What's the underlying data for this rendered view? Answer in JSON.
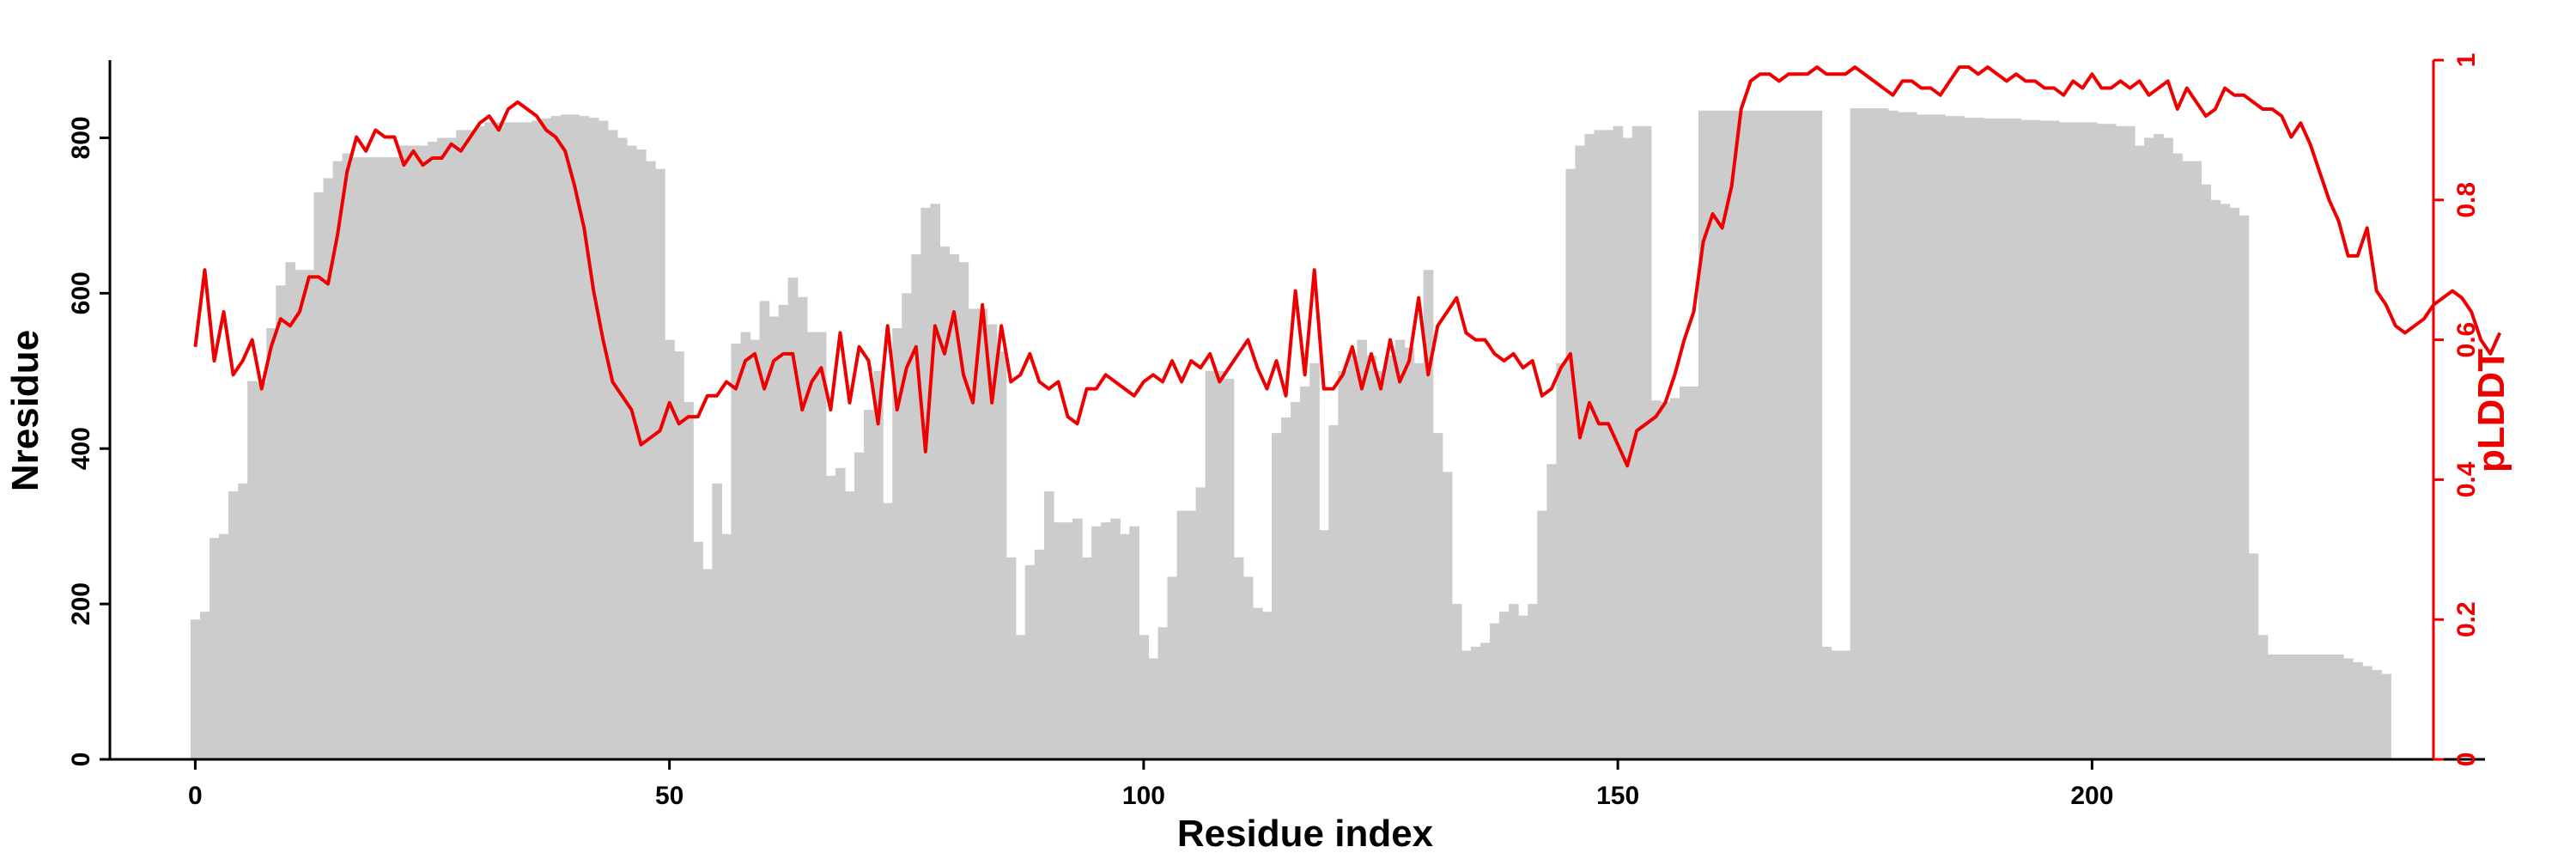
{
  "chart_data": {
    "type": "bar+line",
    "xlabel": "Residue index",
    "ylabel_left": "Nresidue",
    "ylabel_right": "pLDDT",
    "xlim": [
      -9,
      236
    ],
    "ylim_left": [
      0,
      900
    ],
    "ylim_right": [
      0,
      1
    ],
    "x_ticks": [
      "0",
      "50",
      "100",
      "150",
      "200"
    ],
    "y_left_ticks": [
      "0",
      "200",
      "400",
      "600",
      "800"
    ],
    "y_right_ticks": [
      "0",
      "0.2",
      "0.4",
      "0.6",
      "0.8",
      "1"
    ],
    "grid": false,
    "colors": {
      "bars": "#cccccc",
      "line": "#ee0000",
      "axis": "#000000"
    },
    "bars": {
      "name": "Nresidue",
      "x_start": 0,
      "values": [
        180,
        190,
        285,
        290,
        345,
        355,
        487,
        485,
        555,
        610,
        640,
        630,
        630,
        730,
        748,
        770,
        780,
        775,
        775,
        775,
        775,
        775,
        790,
        790,
        790,
        795,
        800,
        800,
        810,
        810,
        815,
        820,
        820,
        820,
        820,
        820,
        822,
        825,
        828,
        830,
        830,
        828,
        826,
        822,
        810,
        800,
        790,
        785,
        770,
        760,
        540,
        525,
        460,
        280,
        245,
        355,
        290,
        535,
        550,
        540,
        590,
        570,
        585,
        620,
        595,
        550,
        550,
        365,
        375,
        345,
        395,
        450,
        500,
        330,
        555,
        600,
        650,
        710,
        715,
        660,
        650,
        640,
        580,
        580,
        560,
        525,
        260,
        160,
        250,
        270,
        345,
        305,
        305,
        310,
        260,
        300,
        305,
        310,
        290,
        300,
        160,
        130,
        170,
        235,
        320,
        320,
        350,
        500,
        500,
        490,
        260,
        235,
        195,
        190,
        420,
        440,
        460,
        480,
        510,
        295,
        430,
        500,
        520,
        540,
        520,
        500,
        520,
        540,
        530,
        510,
        630,
        420,
        370,
        200,
        140,
        145,
        150,
        175,
        190,
        200,
        185,
        200,
        320,
        380,
        510,
        760,
        790,
        805,
        810,
        810,
        815,
        800,
        815,
        815,
        462,
        460,
        465,
        480,
        480,
        835,
        835,
        835,
        835,
        835,
        835,
        835,
        835,
        835,
        835,
        835,
        835,
        835,
        145,
        140,
        140,
        838,
        838,
        838,
        838,
        835,
        833,
        833,
        830,
        830,
        830,
        828,
        828,
        826,
        826,
        825,
        825,
        825,
        825,
        823,
        823,
        822,
        822,
        820,
        820,
        820,
        820,
        818,
        818,
        815,
        815,
        790,
        800,
        805,
        800,
        780,
        770,
        770,
        740,
        720,
        715,
        710,
        700,
        265,
        160,
        135,
        135,
        135,
        135,
        135,
        135,
        135,
        135,
        130,
        125,
        120,
        115,
        110
      ]
    },
    "line": {
      "name": "pLDDT",
      "x_start": 0,
      "values": [
        0.59,
        0.7,
        0.57,
        0.64,
        0.55,
        0.57,
        0.6,
        0.53,
        0.59,
        0.63,
        0.62,
        0.64,
        0.69,
        0.69,
        0.68,
        0.75,
        0.84,
        0.89,
        0.87,
        0.9,
        0.89,
        0.89,
        0.85,
        0.87,
        0.85,
        0.86,
        0.86,
        0.88,
        0.87,
        0.89,
        0.91,
        0.92,
        0.9,
        0.93,
        0.94,
        0.93,
        0.92,
        0.9,
        0.89,
        0.87,
        0.82,
        0.76,
        0.67,
        0.6,
        0.54,
        0.52,
        0.5,
        0.45,
        0.46,
        0.47,
        0.51,
        0.48,
        0.49,
        0.49,
        0.52,
        0.52,
        0.54,
        0.53,
        0.57,
        0.58,
        0.53,
        0.57,
        0.58,
        0.58,
        0.5,
        0.54,
        0.56,
        0.5,
        0.61,
        0.51,
        0.59,
        0.57,
        0.48,
        0.62,
        0.5,
        0.56,
        0.59,
        0.44,
        0.62,
        0.58,
        0.64,
        0.55,
        0.51,
        0.65,
        0.51,
        0.62,
        0.54,
        0.55,
        0.58,
        0.54,
        0.53,
        0.54,
        0.49,
        0.48,
        0.53,
        0.53,
        0.55,
        0.54,
        0.53,
        0.52,
        0.54,
        0.55,
        0.54,
        0.57,
        0.54,
        0.57,
        0.56,
        0.58,
        0.54,
        0.56,
        0.58,
        0.6,
        0.56,
        0.53,
        0.57,
        0.52,
        0.67,
        0.55,
        0.7,
        0.53,
        0.53,
        0.55,
        0.59,
        0.53,
        0.58,
        0.53,
        0.6,
        0.54,
        0.57,
        0.66,
        0.55,
        0.62,
        0.64,
        0.66,
        0.61,
        0.6,
        0.6,
        0.58,
        0.57,
        0.58,
        0.56,
        0.57,
        0.52,
        0.53,
        0.56,
        0.58,
        0.46,
        0.51,
        0.48,
        0.48,
        0.45,
        0.42,
        0.47,
        0.48,
        0.49,
        0.51,
        0.55,
        0.6,
        0.64,
        0.74,
        0.78,
        0.76,
        0.82,
        0.93,
        0.97,
        0.98,
        0.98,
        0.97,
        0.98,
        0.98,
        0.98,
        0.99,
        0.98,
        0.98,
        0.98,
        0.99,
        0.98,
        0.97,
        0.96,
        0.95,
        0.97,
        0.97,
        0.96,
        0.96,
        0.95,
        0.97,
        0.99,
        0.99,
        0.98,
        0.99,
        0.98,
        0.97,
        0.98,
        0.97,
        0.97,
        0.96,
        0.96,
        0.95,
        0.97,
        0.96,
        0.98,
        0.96,
        0.96,
        0.97,
        0.96,
        0.97,
        0.95,
        0.96,
        0.97,
        0.93,
        0.96,
        0.94,
        0.92,
        0.93,
        0.96,
        0.95,
        0.95,
        0.94,
        0.93,
        0.93,
        0.92,
        0.89,
        0.91,
        0.88,
        0.84,
        0.8,
        0.77,
        0.72,
        0.72,
        0.76,
        0.67,
        0.65,
        0.62,
        0.61,
        0.62,
        0.63,
        0.65,
        0.66,
        0.67,
        0.66,
        0.64,
        0.6,
        0.58,
        0.61
      ]
    }
  }
}
